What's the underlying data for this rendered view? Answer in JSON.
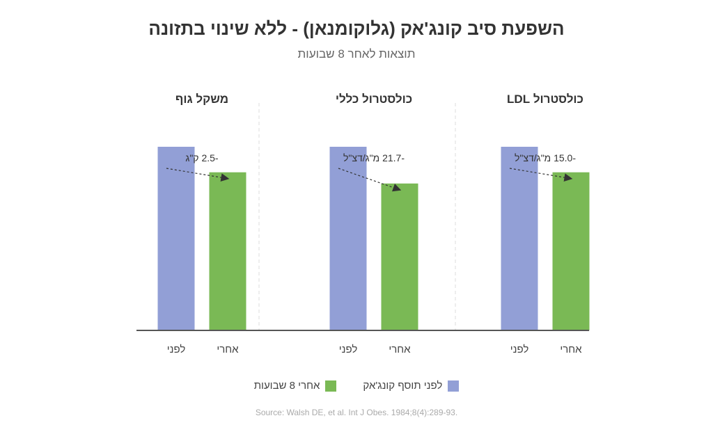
{
  "title": "השפעת סיב קונג'אק (גלוקומנאן) - ללא שינוי בתזונה",
  "subtitle": "תוצאות לאחר 8 שבועות",
  "legend": {
    "before": "לפני תוסף קונג'אק",
    "after": "אחרי 8 שבועות"
  },
  "source": "Source: Walsh DE, et al. Int J Obes. 1984;8(4):289-93.",
  "colors": {
    "before": "#929fd6",
    "after": "#7ab955",
    "axis": "#555555",
    "divider": "#dddddd"
  },
  "chart_data": {
    "type": "bar",
    "categories": [
      "לפני",
      "אחרי"
    ],
    "panels": [
      {
        "title": "משקל גוף",
        "values": [
          100,
          86.1
        ],
        "change_label": "-2.5 ק\"ג"
      },
      {
        "title": "כולסטרול כללי",
        "values": [
          100,
          80.0
        ],
        "change_label": "-21.7 מ\"ג/דצ\"ל"
      },
      {
        "title": "כולסטרול LDL",
        "values": [
          100,
          86.1
        ],
        "change_label": "-15.0 מ\"ג/דצ\"ל"
      }
    ],
    "ylim": [
      0,
      100
    ]
  }
}
